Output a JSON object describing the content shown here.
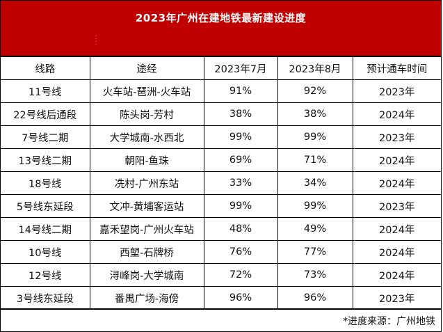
{
  "title": "2023年广州在建地铁最新建设进度",
  "header": {
    "line": "线路",
    "route": "途经",
    "jul": "2023年7月",
    "aug": "2023年8月",
    "open": "预计通车时间"
  },
  "rows": [
    {
      "line": "11号线",
      "route": "火车站-琶洲-火车站",
      "jul": "91%",
      "aug": "92%",
      "open": "2023年"
    },
    {
      "line": "22号线后通段",
      "route": "陈头岗-芳村",
      "jul": "38%",
      "aug": "38%",
      "open": "2024年"
    },
    {
      "line": "7号线二期",
      "route": "大学城南-水西北",
      "jul": "99%",
      "aug": "99%",
      "open": "2023年"
    },
    {
      "line": "13号线二期",
      "route": "朝阳-鱼珠",
      "jul": "69%",
      "aug": "71%",
      "open": "2024年"
    },
    {
      "line": "18号线",
      "route": "冼村-广州东站",
      "jul": "33%",
      "aug": "34%",
      "open": "2024年"
    },
    {
      "line": "5号线东延段",
      "route": "文冲-黄埔客运站",
      "jul": "99%",
      "aug": "99%",
      "open": "2023年"
    },
    {
      "line": "14号线二期",
      "route": "嘉禾望岗-广州火车站",
      "jul": "48%",
      "aug": "49%",
      "open": "2024年"
    },
    {
      "line": "10号线",
      "route": "西塱-石牌桥",
      "jul": "76%",
      "aug": "77%",
      "open": "2024年"
    },
    {
      "line": "12号线",
      "route": "浔峰岗-大学城南",
      "jul": "72%",
      "aug": "73%",
      "open": "2024年"
    },
    {
      "line": "3号线东延段",
      "route": "番禺广场-海傍",
      "jul": "96%",
      "aug": "96%",
      "open": "2023年"
    }
  ],
  "source_note": "*进度来源：广州地铁",
  "colors": {
    "banner": "#c00000",
    "banner_text": "#ffffff",
    "grid_line": "#000000"
  }
}
